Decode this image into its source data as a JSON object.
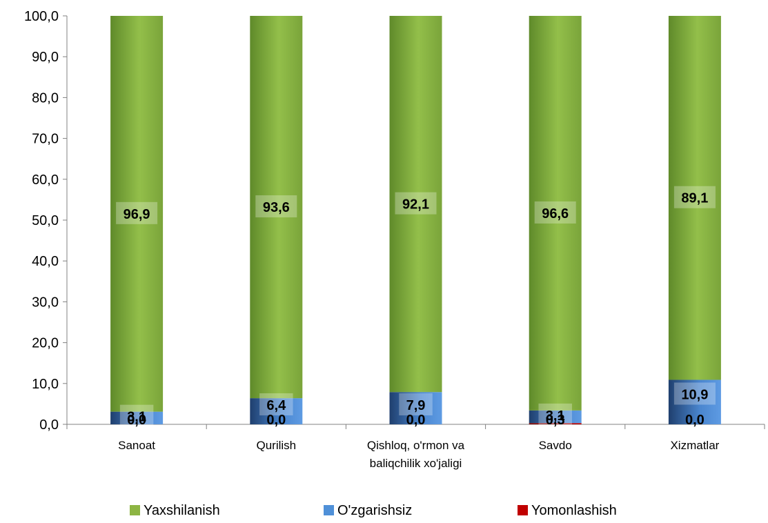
{
  "chart_data": {
    "type": "bar",
    "stacked": true,
    "categories": [
      [
        "Sanoat"
      ],
      [
        "Qurilish"
      ],
      [
        "Qishloq, o'rmon va",
        "baliqchilik xo'jaligi"
      ],
      [
        "Savdo"
      ],
      [
        "Xizmatlar"
      ]
    ],
    "series": [
      {
        "name": "Yomonlashish",
        "values": [
          0.0,
          0.0,
          0.0,
          0.3,
          0.0
        ],
        "labels": [
          "0,0",
          "0,0",
          "0,0",
          "0,3",
          "0,0"
        ],
        "color": "#c00000"
      },
      {
        "name": "O'zgarishsiz",
        "values": [
          3.1,
          6.4,
          7.9,
          3.1,
          10.9
        ],
        "labels": [
          "3,1",
          "6,4",
          "7,9",
          "3,1",
          "10,9"
        ],
        "color": "#4f90d8"
      },
      {
        "name": "Yaxshilanish",
        "values": [
          96.9,
          93.6,
          92.1,
          96.6,
          89.1
        ],
        "labels": [
          "96,9",
          "93,6",
          "92,1",
          "96,6",
          "89,1"
        ],
        "color": "#8db543"
      }
    ],
    "ylim": [
      0,
      100
    ],
    "yticks": [
      "0,0",
      "10,0",
      "20,0",
      "30,0",
      "40,0",
      "50,0",
      "60,0",
      "70,0",
      "80,0",
      "90,0",
      "100,0"
    ],
    "legend": {
      "placement": "bottom",
      "order": [
        "Yaxshilanish",
        "O'zgarishsiz",
        "Yomonlashish"
      ]
    },
    "grid": false
  }
}
